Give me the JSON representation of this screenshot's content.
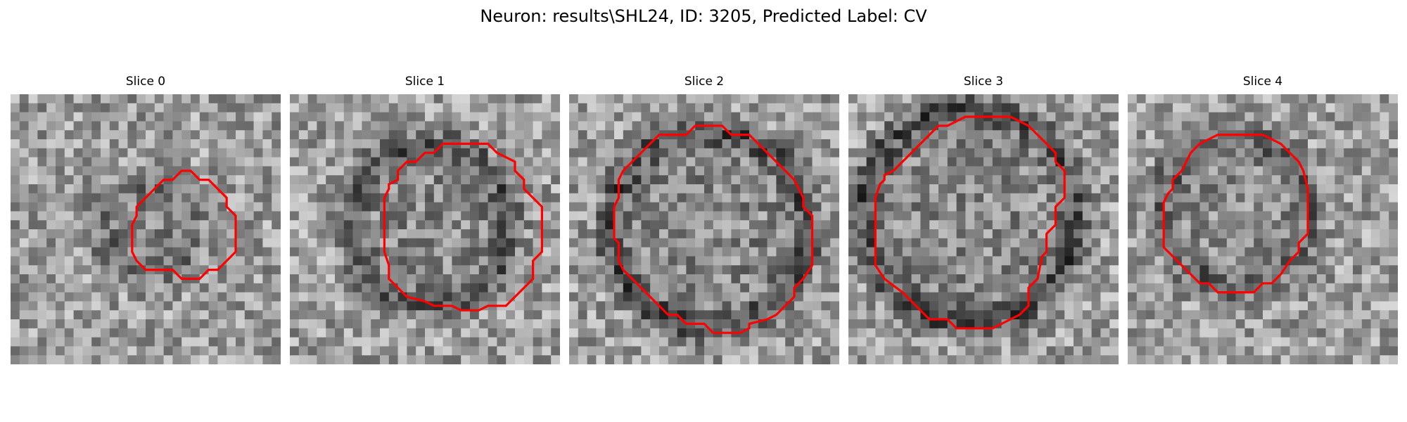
{
  "figure": {
    "title": "Neuron: results\\SHL24, ID: 3205, Predicted Label: CV"
  },
  "slices": [
    {
      "title": "Slice 0"
    },
    {
      "title": "Slice 1"
    },
    {
      "title": "Slice 2"
    },
    {
      "title": "Slice 3"
    },
    {
      "title": "Slice 4"
    }
  ],
  "colors": {
    "contour": "#ff0000",
    "background": "#ffffff"
  }
}
